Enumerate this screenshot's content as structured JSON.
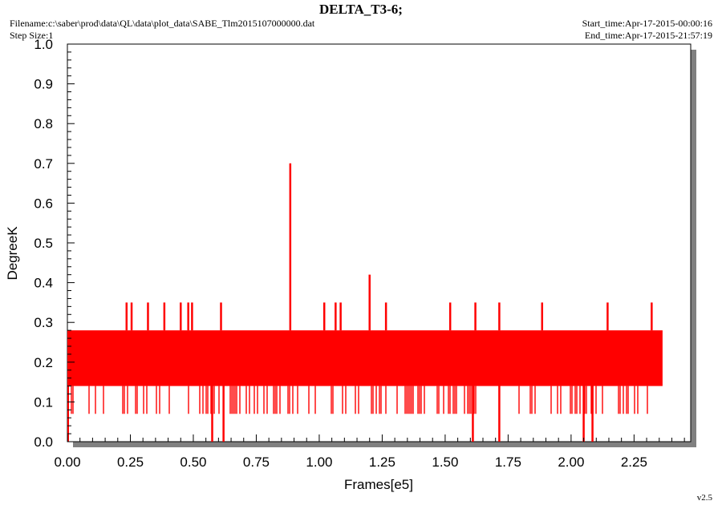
{
  "header": {
    "filename": "Filename:c:\\saber\\prod\\data\\QL\\data\\plot_data\\SABE_Tlm2015107000000.dat",
    "step_size": "Step Size:1",
    "start_time": "Start_time:Apr-17-2015-00:00:16",
    "end_time": "End_time:Apr-17-2015-21:57:19"
  },
  "footer": {
    "version": "v2.5"
  },
  "chart_data": {
    "type": "line",
    "title": "DELTA_T3-6;",
    "xlabel": "Frames[e5]",
    "ylabel": "DegreeK",
    "xlim": [
      0,
      2.475
    ],
    "ylim": [
      0,
      1.0
    ],
    "x_ticks": [
      "0.00",
      "0.25",
      "0.50",
      "0.75",
      "1.00",
      "1.25",
      "1.50",
      "1.75",
      "2.00",
      "2.25"
    ],
    "y_ticks": [
      "0.0",
      "0.1",
      "0.2",
      "0.3",
      "0.4",
      "0.5",
      "0.6",
      "0.7",
      "0.8",
      "0.9",
      "1.0"
    ],
    "series": [
      {
        "color": "#ff0000",
        "x_range": [
          0,
          2.36
        ],
        "band": [
          0.14,
          0.28
        ],
        "level_values": [
          0.07,
          0.14,
          0.21,
          0.28,
          0.35,
          0.42,
          0.7
        ],
        "spikes_high": [
          {
            "x": 0.235,
            "y": 0.35
          },
          {
            "x": 0.255,
            "y": 0.35
          },
          {
            "x": 0.32,
            "y": 0.35
          },
          {
            "x": 0.385,
            "y": 0.35
          },
          {
            "x": 0.45,
            "y": 0.35
          },
          {
            "x": 0.48,
            "y": 0.35
          },
          {
            "x": 0.495,
            "y": 0.35
          },
          {
            "x": 0.61,
            "y": 0.35
          },
          {
            "x": 0.885,
            "y": 0.7
          },
          {
            "x": 1.02,
            "y": 0.35
          },
          {
            "x": 1.065,
            "y": 0.35
          },
          {
            "x": 1.085,
            "y": 0.35
          },
          {
            "x": 1.2,
            "y": 0.42
          },
          {
            "x": 1.265,
            "y": 0.35
          },
          {
            "x": 1.52,
            "y": 0.35
          },
          {
            "x": 1.62,
            "y": 0.35
          },
          {
            "x": 1.715,
            "y": 0.35
          },
          {
            "x": 1.885,
            "y": 0.35
          },
          {
            "x": 2.145,
            "y": 0.35
          },
          {
            "x": 2.32,
            "y": 0.35
          }
        ],
        "spikes_low": [
          {
            "x": 0.575,
            "y": 0.0
          },
          {
            "x": 0.62,
            "y": 0.0
          },
          {
            "x": 1.61,
            "y": 0.0
          },
          {
            "x": 1.715,
            "y": 0.0
          },
          {
            "x": 2.05,
            "y": 0.0
          },
          {
            "x": 2.085,
            "y": 0.0
          }
        ]
      }
    ],
    "grid": false,
    "legend": "none"
  }
}
